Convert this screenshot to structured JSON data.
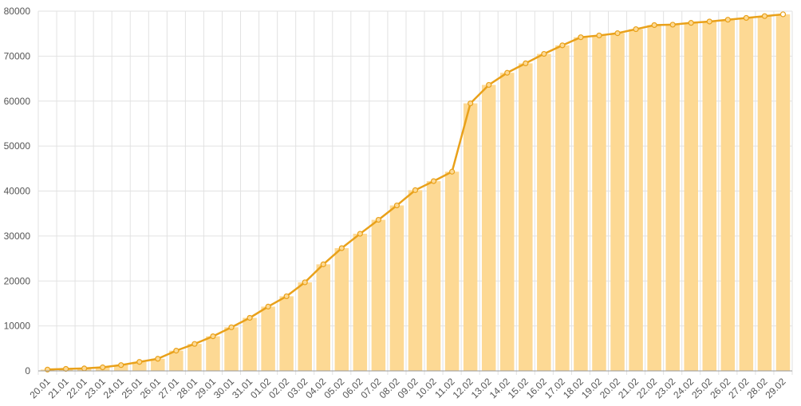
{
  "chart_data": {
    "type": "bar_line",
    "categories": [
      "20.01",
      "21.01",
      "22.01",
      "23.01",
      "24.01",
      "25.01",
      "26.01",
      "27.01",
      "28.01",
      "29.01",
      "30.01",
      "31.01",
      "01.02",
      "02.02",
      "03.02",
      "04.02",
      "05.02",
      "06.02",
      "07.02",
      "08.02",
      "09.02",
      "10.02",
      "11.02",
      "12.02",
      "13.02",
      "14.02",
      "15.02",
      "16.02",
      "17.02",
      "18.02",
      "19.02",
      "20.02",
      "21.02",
      "22.02",
      "23.02",
      "24.02",
      "25.02",
      "26.02",
      "27.02",
      "28.02",
      "29.02"
    ],
    "values": [
      300,
      450,
      550,
      800,
      1300,
      2000,
      2700,
      4500,
      6000,
      7700,
      9700,
      11800,
      14300,
      16600,
      19700,
      23700,
      27300,
      30500,
      33600,
      36800,
      40200,
      42200,
      44300,
      59500,
      63600,
      66300,
      68400,
      70500,
      72400,
      74200,
      74600,
      75100,
      76000,
      76900,
      77000,
      77400,
      77700,
      78100,
      78500,
      78900,
      79300
    ],
    "bar_color": "#fdd994",
    "line_color": "#e9a11a",
    "ylim": [
      0,
      80000
    ],
    "yticks": [
      0,
      10000,
      20000,
      30000,
      40000,
      50000,
      60000,
      70000,
      80000
    ],
    "grid": true
  }
}
